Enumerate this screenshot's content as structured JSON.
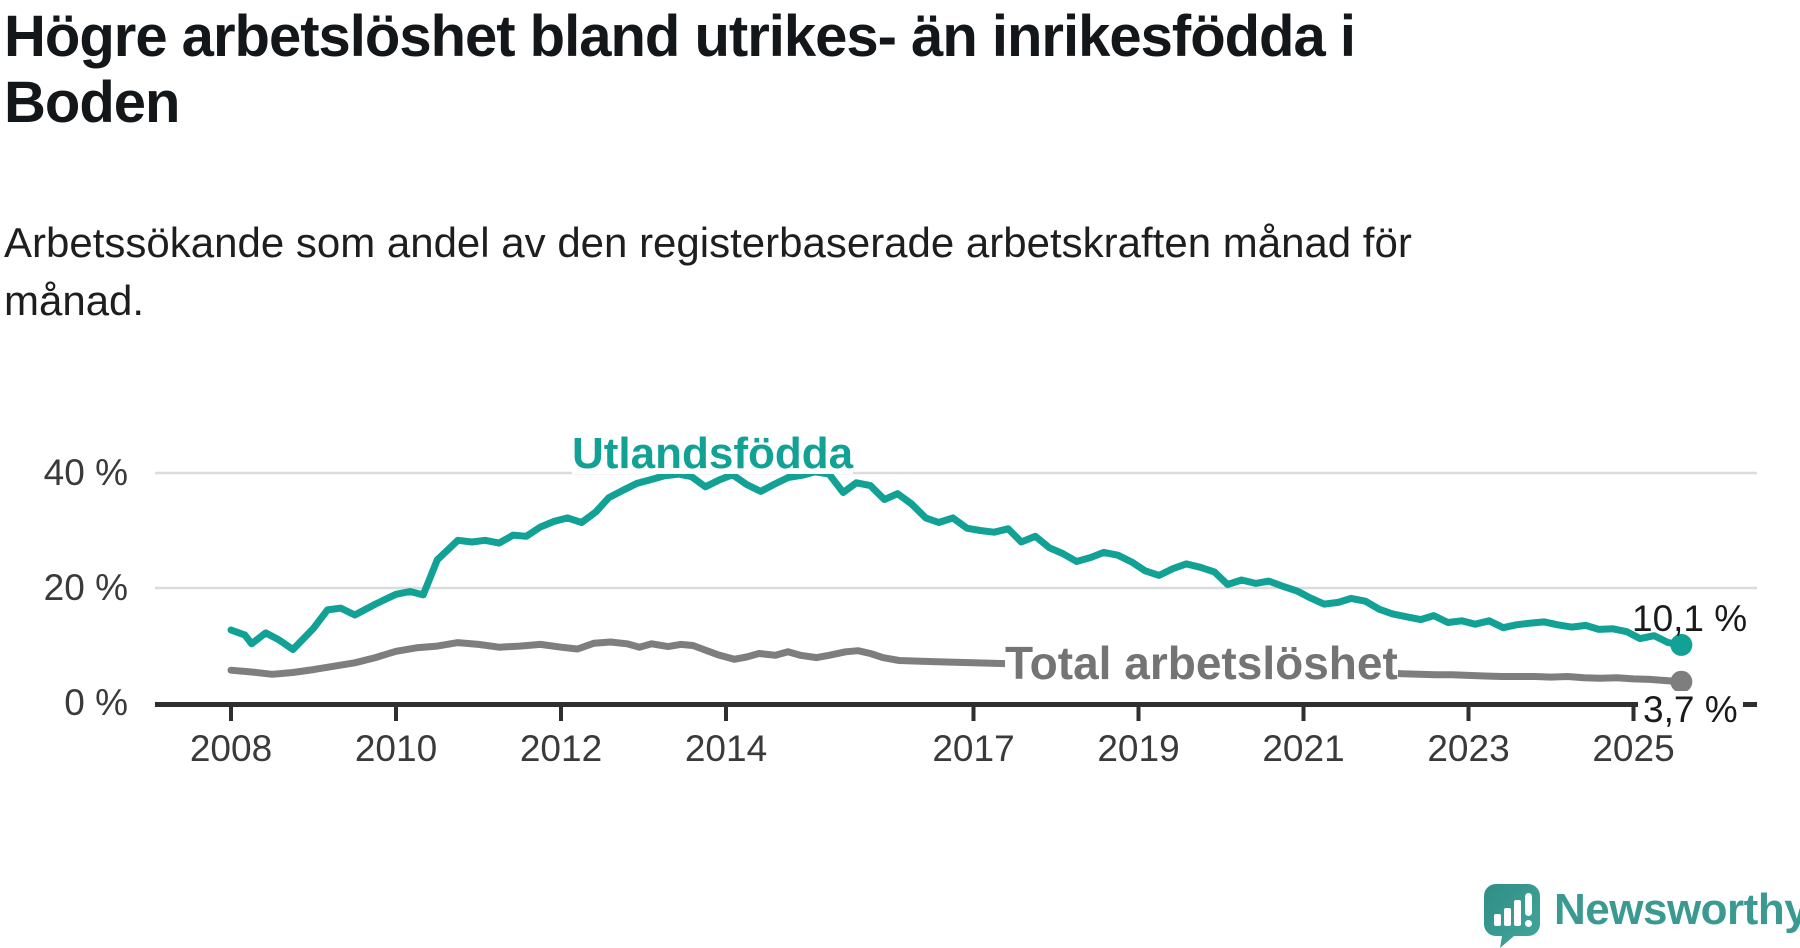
{
  "header": {
    "title_lines": [
      "Högre arbetslöshet bland utrikes- än inrikesfödda i",
      "Boden"
    ],
    "subtitle_lines": [
      "Arbetssökande som andel av den registerbaserade arbetskraften månad för",
      "månad."
    ]
  },
  "logo": {
    "wordmark": "Newsworthy",
    "color": "#3a9a92"
  },
  "colors": {
    "accent_teal": "#12a195",
    "series_gray": "#7e7e7e",
    "gridline": "#dcdcdc",
    "axis": "#2f2f2f",
    "tick_label": "#3a3a3a",
    "annotation": "#1a1a1a"
  },
  "chart_data": {
    "type": "line",
    "title": "Högre arbetslöshet bland utrikes- än inrikesfödda i Boden",
    "subtitle": "Arbetssökande som andel av den registerbaserade arbetskraften månad för månad.",
    "xlabel": "",
    "ylabel": "",
    "grid": "horizontal",
    "legend_position": "inline-labels",
    "x_axis": {
      "ticks": [
        2008,
        2010,
        2012,
        2014,
        2017,
        2019,
        2021,
        2023,
        2025
      ],
      "range": [
        2007.1,
        2026.5
      ]
    },
    "y_axis": {
      "ticks": [
        {
          "value": 0,
          "label": "0 %"
        },
        {
          "value": 20,
          "label": "20 %"
        },
        {
          "value": 40,
          "label": "40 %"
        }
      ],
      "range": [
        0,
        46
      ],
      "unit": "%"
    },
    "series": [
      {
        "name": "Utlandsfödda",
        "color": "#12a195",
        "end_label": "10,1 %",
        "end_value": 10.1,
        "points": [
          [
            2008.0,
            12.7
          ],
          [
            2008.17,
            11.8
          ],
          [
            2008.25,
            10.3
          ],
          [
            2008.42,
            12.2
          ],
          [
            2008.58,
            11.0
          ],
          [
            2008.75,
            9.3
          ],
          [
            2009.0,
            13.0
          ],
          [
            2009.17,
            16.2
          ],
          [
            2009.33,
            16.5
          ],
          [
            2009.5,
            15.3
          ],
          [
            2009.75,
            17.2
          ],
          [
            2010.0,
            18.9
          ],
          [
            2010.17,
            19.4
          ],
          [
            2010.33,
            18.8
          ],
          [
            2010.5,
            24.9
          ],
          [
            2010.75,
            28.3
          ],
          [
            2010.92,
            28.0
          ],
          [
            2011.08,
            28.3
          ],
          [
            2011.25,
            27.8
          ],
          [
            2011.42,
            29.2
          ],
          [
            2011.58,
            29.0
          ],
          [
            2011.75,
            30.6
          ],
          [
            2011.92,
            31.6
          ],
          [
            2012.08,
            32.2
          ],
          [
            2012.25,
            31.4
          ],
          [
            2012.42,
            33.2
          ],
          [
            2012.58,
            35.7
          ],
          [
            2012.75,
            37.0
          ],
          [
            2012.92,
            38.2
          ],
          [
            2013.08,
            38.8
          ],
          [
            2013.25,
            39.5
          ],
          [
            2013.42,
            39.8
          ],
          [
            2013.58,
            39.4
          ],
          [
            2013.75,
            37.6
          ],
          [
            2013.92,
            38.8
          ],
          [
            2014.08,
            39.7
          ],
          [
            2014.25,
            38.0
          ],
          [
            2014.42,
            36.8
          ],
          [
            2014.58,
            38.0
          ],
          [
            2014.75,
            39.2
          ],
          [
            2014.92,
            39.6
          ],
          [
            2015.08,
            40.2
          ],
          [
            2015.25,
            39.8
          ],
          [
            2015.42,
            36.6
          ],
          [
            2015.58,
            38.3
          ],
          [
            2015.75,
            37.8
          ],
          [
            2015.92,
            35.4
          ],
          [
            2016.08,
            36.4
          ],
          [
            2016.25,
            34.6
          ],
          [
            2016.42,
            32.2
          ],
          [
            2016.58,
            31.4
          ],
          [
            2016.75,
            32.2
          ],
          [
            2016.92,
            30.4
          ],
          [
            2017.08,
            30.0
          ],
          [
            2017.25,
            29.7
          ],
          [
            2017.42,
            30.3
          ],
          [
            2017.58,
            28.0
          ],
          [
            2017.75,
            29.0
          ],
          [
            2017.92,
            27.0
          ],
          [
            2018.08,
            26.0
          ],
          [
            2018.25,
            24.6
          ],
          [
            2018.42,
            25.3
          ],
          [
            2018.58,
            26.2
          ],
          [
            2018.75,
            25.7
          ],
          [
            2018.92,
            24.5
          ],
          [
            2019.08,
            23.0
          ],
          [
            2019.25,
            22.2
          ],
          [
            2019.42,
            23.4
          ],
          [
            2019.58,
            24.2
          ],
          [
            2019.75,
            23.6
          ],
          [
            2019.92,
            22.8
          ],
          [
            2020.08,
            20.6
          ],
          [
            2020.25,
            21.4
          ],
          [
            2020.42,
            20.8
          ],
          [
            2020.58,
            21.2
          ],
          [
            2020.75,
            20.3
          ],
          [
            2020.92,
            19.5
          ],
          [
            2021.08,
            18.3
          ],
          [
            2021.25,
            17.2
          ],
          [
            2021.42,
            17.5
          ],
          [
            2021.58,
            18.2
          ],
          [
            2021.75,
            17.7
          ],
          [
            2021.92,
            16.3
          ],
          [
            2022.08,
            15.5
          ],
          [
            2022.25,
            15.0
          ],
          [
            2022.42,
            14.5
          ],
          [
            2022.58,
            15.2
          ],
          [
            2022.75,
            14.0
          ],
          [
            2022.92,
            14.3
          ],
          [
            2023.08,
            13.7
          ],
          [
            2023.25,
            14.3
          ],
          [
            2023.42,
            13.1
          ],
          [
            2023.58,
            13.6
          ],
          [
            2023.75,
            13.9
          ],
          [
            2023.92,
            14.1
          ],
          [
            2024.08,
            13.6
          ],
          [
            2024.25,
            13.2
          ],
          [
            2024.42,
            13.5
          ],
          [
            2024.58,
            12.8
          ],
          [
            2024.75,
            12.9
          ],
          [
            2024.92,
            12.4
          ],
          [
            2025.08,
            11.2
          ],
          [
            2025.25,
            11.7
          ],
          [
            2025.42,
            10.5
          ],
          [
            2025.58,
            10.1
          ]
        ]
      },
      {
        "name": "Total arbetslöshet",
        "color": "#7e7e7e",
        "end_label": "3,7 %",
        "end_value": 3.7,
        "points": [
          [
            2008.0,
            5.7
          ],
          [
            2008.25,
            5.4
          ],
          [
            2008.5,
            5.0
          ],
          [
            2008.75,
            5.3
          ],
          [
            2009.0,
            5.8
          ],
          [
            2009.25,
            6.4
          ],
          [
            2009.5,
            7.0
          ],
          [
            2009.75,
            7.9
          ],
          [
            2010.0,
            9.0
          ],
          [
            2010.25,
            9.6
          ],
          [
            2010.5,
            9.9
          ],
          [
            2010.75,
            10.5
          ],
          [
            2011.0,
            10.2
          ],
          [
            2011.25,
            9.7
          ],
          [
            2011.5,
            9.9
          ],
          [
            2011.75,
            10.2
          ],
          [
            2012.0,
            9.7
          ],
          [
            2012.2,
            9.4
          ],
          [
            2012.4,
            10.4
          ],
          [
            2012.6,
            10.6
          ],
          [
            2012.8,
            10.3
          ],
          [
            2012.95,
            9.7
          ],
          [
            2013.1,
            10.3
          ],
          [
            2013.3,
            9.8
          ],
          [
            2013.45,
            10.2
          ],
          [
            2013.6,
            10.0
          ],
          [
            2013.75,
            9.2
          ],
          [
            2013.9,
            8.4
          ],
          [
            2014.1,
            7.6
          ],
          [
            2014.25,
            8.0
          ],
          [
            2014.4,
            8.6
          ],
          [
            2014.6,
            8.3
          ],
          [
            2014.75,
            8.9
          ],
          [
            2014.9,
            8.3
          ],
          [
            2015.1,
            7.9
          ],
          [
            2015.25,
            8.3
          ],
          [
            2015.45,
            8.9
          ],
          [
            2015.6,
            9.1
          ],
          [
            2015.75,
            8.6
          ],
          [
            2015.9,
            7.9
          ],
          [
            2016.1,
            7.4
          ],
          [
            2016.5,
            7.2
          ],
          [
            2017.0,
            7.0
          ],
          [
            2017.5,
            6.8
          ],
          [
            2018.0,
            6.4
          ],
          [
            2018.5,
            6.1
          ],
          [
            2019.0,
            5.9
          ],
          [
            2019.5,
            5.7
          ],
          [
            2020.0,
            6.0
          ],
          [
            2020.5,
            6.2
          ],
          [
            2021.0,
            5.9
          ],
          [
            2021.5,
            5.5
          ],
          [
            2022.0,
            5.2
          ],
          [
            2022.2,
            5.1
          ],
          [
            2022.4,
            5.0
          ],
          [
            2022.6,
            4.9
          ],
          [
            2022.8,
            4.9
          ],
          [
            2023.0,
            4.8
          ],
          [
            2023.2,
            4.7
          ],
          [
            2023.4,
            4.6
          ],
          [
            2023.6,
            4.6
          ],
          [
            2023.8,
            4.6
          ],
          [
            2024.0,
            4.5
          ],
          [
            2024.2,
            4.6
          ],
          [
            2024.4,
            4.4
          ],
          [
            2024.6,
            4.3
          ],
          [
            2024.8,
            4.4
          ],
          [
            2025.0,
            4.2
          ],
          [
            2025.2,
            4.1
          ],
          [
            2025.4,
            3.9
          ],
          [
            2025.58,
            3.7
          ]
        ]
      }
    ]
  }
}
